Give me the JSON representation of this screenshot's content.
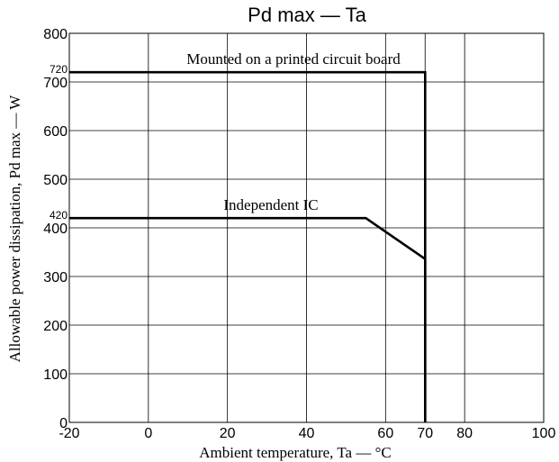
{
  "chart_data": {
    "type": "line",
    "title": "Pd max — Ta",
    "xlabel": "Ambient temperature, Ta — °C",
    "ylabel": "Allowable power dissipation, Pd max — W",
    "xlim": [
      -20,
      100
    ],
    "ylim": [
      0,
      800
    ],
    "x_ticks": [
      "-20",
      "0",
      "20",
      "40",
      "60",
      "70",
      "80",
      "100"
    ],
    "y_ticks": [
      "0",
      "100",
      "200",
      "300",
      "400",
      "500",
      "600",
      "700",
      "800"
    ],
    "extra_y_ticks": [
      "420",
      "720"
    ],
    "grid": true,
    "series": [
      {
        "name": "Mounted on a printed circuit board",
        "points": [
          [
            -20,
            720
          ],
          [
            70,
            720
          ],
          [
            70,
            0
          ]
        ]
      },
      {
        "name": "Independent IC",
        "points": [
          [
            -20,
            420
          ],
          [
            55,
            420
          ],
          [
            70,
            336
          ],
          [
            70,
            0
          ]
        ]
      }
    ]
  }
}
